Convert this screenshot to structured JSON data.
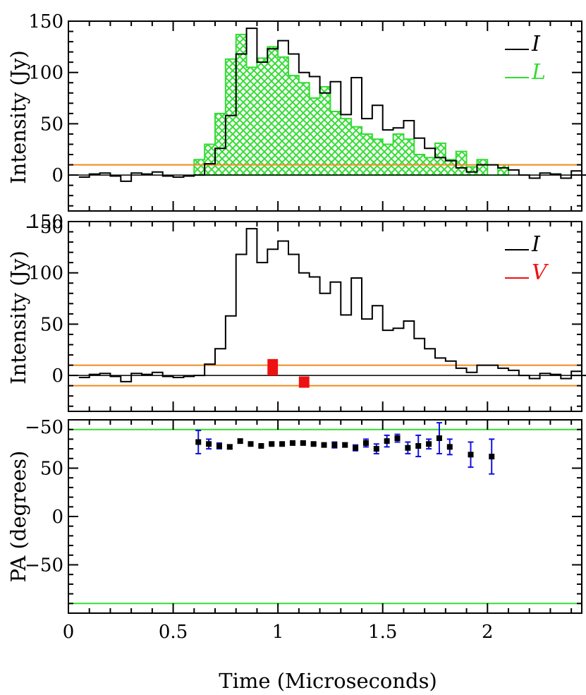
{
  "chart_data": [
    {
      "type": "bar",
      "panel": "top",
      "ylabel": "Intensity (Jy)",
      "ylim": [
        -35,
        150
      ],
      "xlim": [
        0,
        2.45
      ],
      "yticks": [
        -50,
        0,
        50,
        100,
        150
      ],
      "ytick_labels": [
        "−50",
        "0",
        "50",
        "100",
        "150"
      ],
      "threshold": 10,
      "legend": [
        {
          "label": "I",
          "color": "#000000"
        },
        {
          "label": "L",
          "color": "#33dd33"
        }
      ],
      "series": [
        {
          "name": "I",
          "type": "step",
          "color": "#000000",
          "x_edges": [
            0.05,
            0.1,
            0.15,
            0.2,
            0.25,
            0.3,
            0.35,
            0.4,
            0.45,
            0.5,
            0.55,
            0.6,
            0.65,
            0.7,
            0.75,
            0.8,
            0.85,
            0.9,
            0.95,
            1.0,
            1.05,
            1.1,
            1.15,
            1.2,
            1.25,
            1.3,
            1.35,
            1.4,
            1.45,
            1.5,
            1.55,
            1.6,
            1.65,
            1.7,
            1.75,
            1.8,
            1.85,
            1.9,
            1.95,
            2.0,
            2.05,
            2.1,
            2.15,
            2.2,
            2.25,
            2.3,
            2.35,
            2.4,
            2.45
          ],
          "values": [
            -2,
            1,
            2,
            -1,
            -6,
            2,
            1,
            3,
            -1,
            -2,
            -1,
            0,
            11,
            26,
            58,
            118,
            143,
            110,
            123,
            131,
            118,
            100,
            96,
            80,
            91,
            59,
            95,
            55,
            68,
            44,
            46,
            53,
            36,
            26,
            17,
            14,
            7,
            3,
            10,
            10,
            7,
            5,
            0,
            -3,
            2,
            1,
            -3,
            4,
            0
          ]
        },
        {
          "name": "L",
          "type": "hatched-step",
          "color": "#33dd33",
          "x_edges": [
            0.6,
            0.65,
            0.7,
            0.75,
            0.8,
            0.85,
            0.9,
            0.95,
            1.0,
            1.05,
            1.1,
            1.15,
            1.2,
            1.25,
            1.3,
            1.35,
            1.4,
            1.45,
            1.5,
            1.55,
            1.6,
            1.65,
            1.7,
            1.75,
            1.8,
            1.85,
            1.9,
            1.95,
            2.0,
            2.05
          ],
          "values": [
            15,
            30,
            60,
            113,
            137,
            105,
            114,
            125,
            115,
            97,
            90,
            75,
            86,
            62,
            55,
            47,
            40,
            35,
            30,
            40,
            35,
            20,
            17,
            31,
            15,
            23,
            8,
            15,
            0,
            10
          ]
        }
      ]
    },
    {
      "type": "bar",
      "panel": "middle",
      "ylabel": "Intensity (Jy)",
      "ylim": [
        -35,
        150
      ],
      "xlim": [
        0,
        2.45
      ],
      "yticks": [
        -50,
        0,
        50,
        100,
        150
      ],
      "ytick_labels": [
        "−50",
        "0",
        "50",
        "100",
        "150"
      ],
      "threshold": 10,
      "legend": [
        {
          "label": "I",
          "color": "#000000"
        },
        {
          "label": "V",
          "color": "#ee1111"
        }
      ],
      "series": [
        {
          "name": "I",
          "type": "step",
          "color": "#000000",
          "x_edges": [
            0.05,
            0.1,
            0.15,
            0.2,
            0.25,
            0.3,
            0.35,
            0.4,
            0.45,
            0.5,
            0.55,
            0.6,
            0.65,
            0.7,
            0.75,
            0.8,
            0.85,
            0.9,
            0.95,
            1.0,
            1.05,
            1.1,
            1.15,
            1.2,
            1.25,
            1.3,
            1.35,
            1.4,
            1.45,
            1.5,
            1.55,
            1.6,
            1.65,
            1.7,
            1.75,
            1.8,
            1.85,
            1.9,
            1.95,
            2.0,
            2.05,
            2.1,
            2.15,
            2.2,
            2.25,
            2.3,
            2.35,
            2.4,
            2.45
          ],
          "values": [
            -2,
            1,
            2,
            -1,
            -6,
            2,
            1,
            3,
            -1,
            -2,
            -1,
            0,
            11,
            26,
            58,
            118,
            143,
            110,
            123,
            131,
            118,
            100,
            96,
            80,
            91,
            59,
            95,
            55,
            68,
            44,
            46,
            53,
            36,
            26,
            17,
            14,
            7,
            3,
            10,
            10,
            7,
            5,
            0,
            -3,
            2,
            1,
            -3,
            4,
            0
          ]
        },
        {
          "name": "V",
          "type": "bars",
          "color": "#ee1111",
          "points": [
            {
              "x0": 0.95,
              "x1": 1.0,
              "value": 16,
              "base": 0
            },
            {
              "x0": 1.1,
              "x1": 1.15,
              "value": -12,
              "base": -1
            }
          ]
        }
      ]
    },
    {
      "type": "scatter",
      "panel": "bottom",
      "ylabel": "PA (degrees)",
      "xlabel": "Time (Microseconds)",
      "ylim": [
        -100,
        100
      ],
      "xlim": [
        0,
        2.45
      ],
      "yticks": [
        -50,
        0,
        50
      ],
      "ytick_labels": [
        "−50",
        "0",
        "50"
      ],
      "xticks": [
        0,
        0.5,
        1,
        1.5,
        2
      ],
      "xtick_labels": [
        "0",
        "0.5",
        "1",
        "1.5",
        "2"
      ],
      "hlines": [
        90,
        -90
      ],
      "hline_color": "#33dd33",
      "errorbar_color": "#1111dd",
      "points": [
        {
          "x": 0.62,
          "y": 77,
          "err": 12
        },
        {
          "x": 0.67,
          "y": 75,
          "err": 5
        },
        {
          "x": 0.72,
          "y": 73,
          "err": 3
        },
        {
          "x": 0.77,
          "y": 72,
          "err": 2
        },
        {
          "x": 0.82,
          "y": 78,
          "err": 2
        },
        {
          "x": 0.87,
          "y": 75,
          "err": 1
        },
        {
          "x": 0.92,
          "y": 73,
          "err": 1
        },
        {
          "x": 0.97,
          "y": 75,
          "err": 1
        },
        {
          "x": 1.02,
          "y": 75,
          "err": 1
        },
        {
          "x": 1.07,
          "y": 76,
          "err": 1
        },
        {
          "x": 1.12,
          "y": 76,
          "err": 1
        },
        {
          "x": 1.17,
          "y": 75,
          "err": 1
        },
        {
          "x": 1.22,
          "y": 74,
          "err": 1
        },
        {
          "x": 1.27,
          "y": 74,
          "err": 3
        },
        {
          "x": 1.32,
          "y": 74,
          "err": 2
        },
        {
          "x": 1.37,
          "y": 71,
          "err": 3
        },
        {
          "x": 1.42,
          "y": 76,
          "err": 4
        },
        {
          "x": 1.47,
          "y": 70,
          "err": 5
        },
        {
          "x": 1.52,
          "y": 78,
          "err": 6
        },
        {
          "x": 1.57,
          "y": 81,
          "err": 4
        },
        {
          "x": 1.62,
          "y": 71,
          "err": 6
        },
        {
          "x": 1.67,
          "y": 73,
          "err": 11
        },
        {
          "x": 1.72,
          "y": 75,
          "err": 5
        },
        {
          "x": 1.77,
          "y": 81,
          "err": 16
        },
        {
          "x": 1.82,
          "y": 72,
          "err": 8
        },
        {
          "x": 1.92,
          "y": 64,
          "err": 13
        },
        {
          "x": 2.02,
          "y": 62,
          "err": 18
        }
      ]
    }
  ]
}
